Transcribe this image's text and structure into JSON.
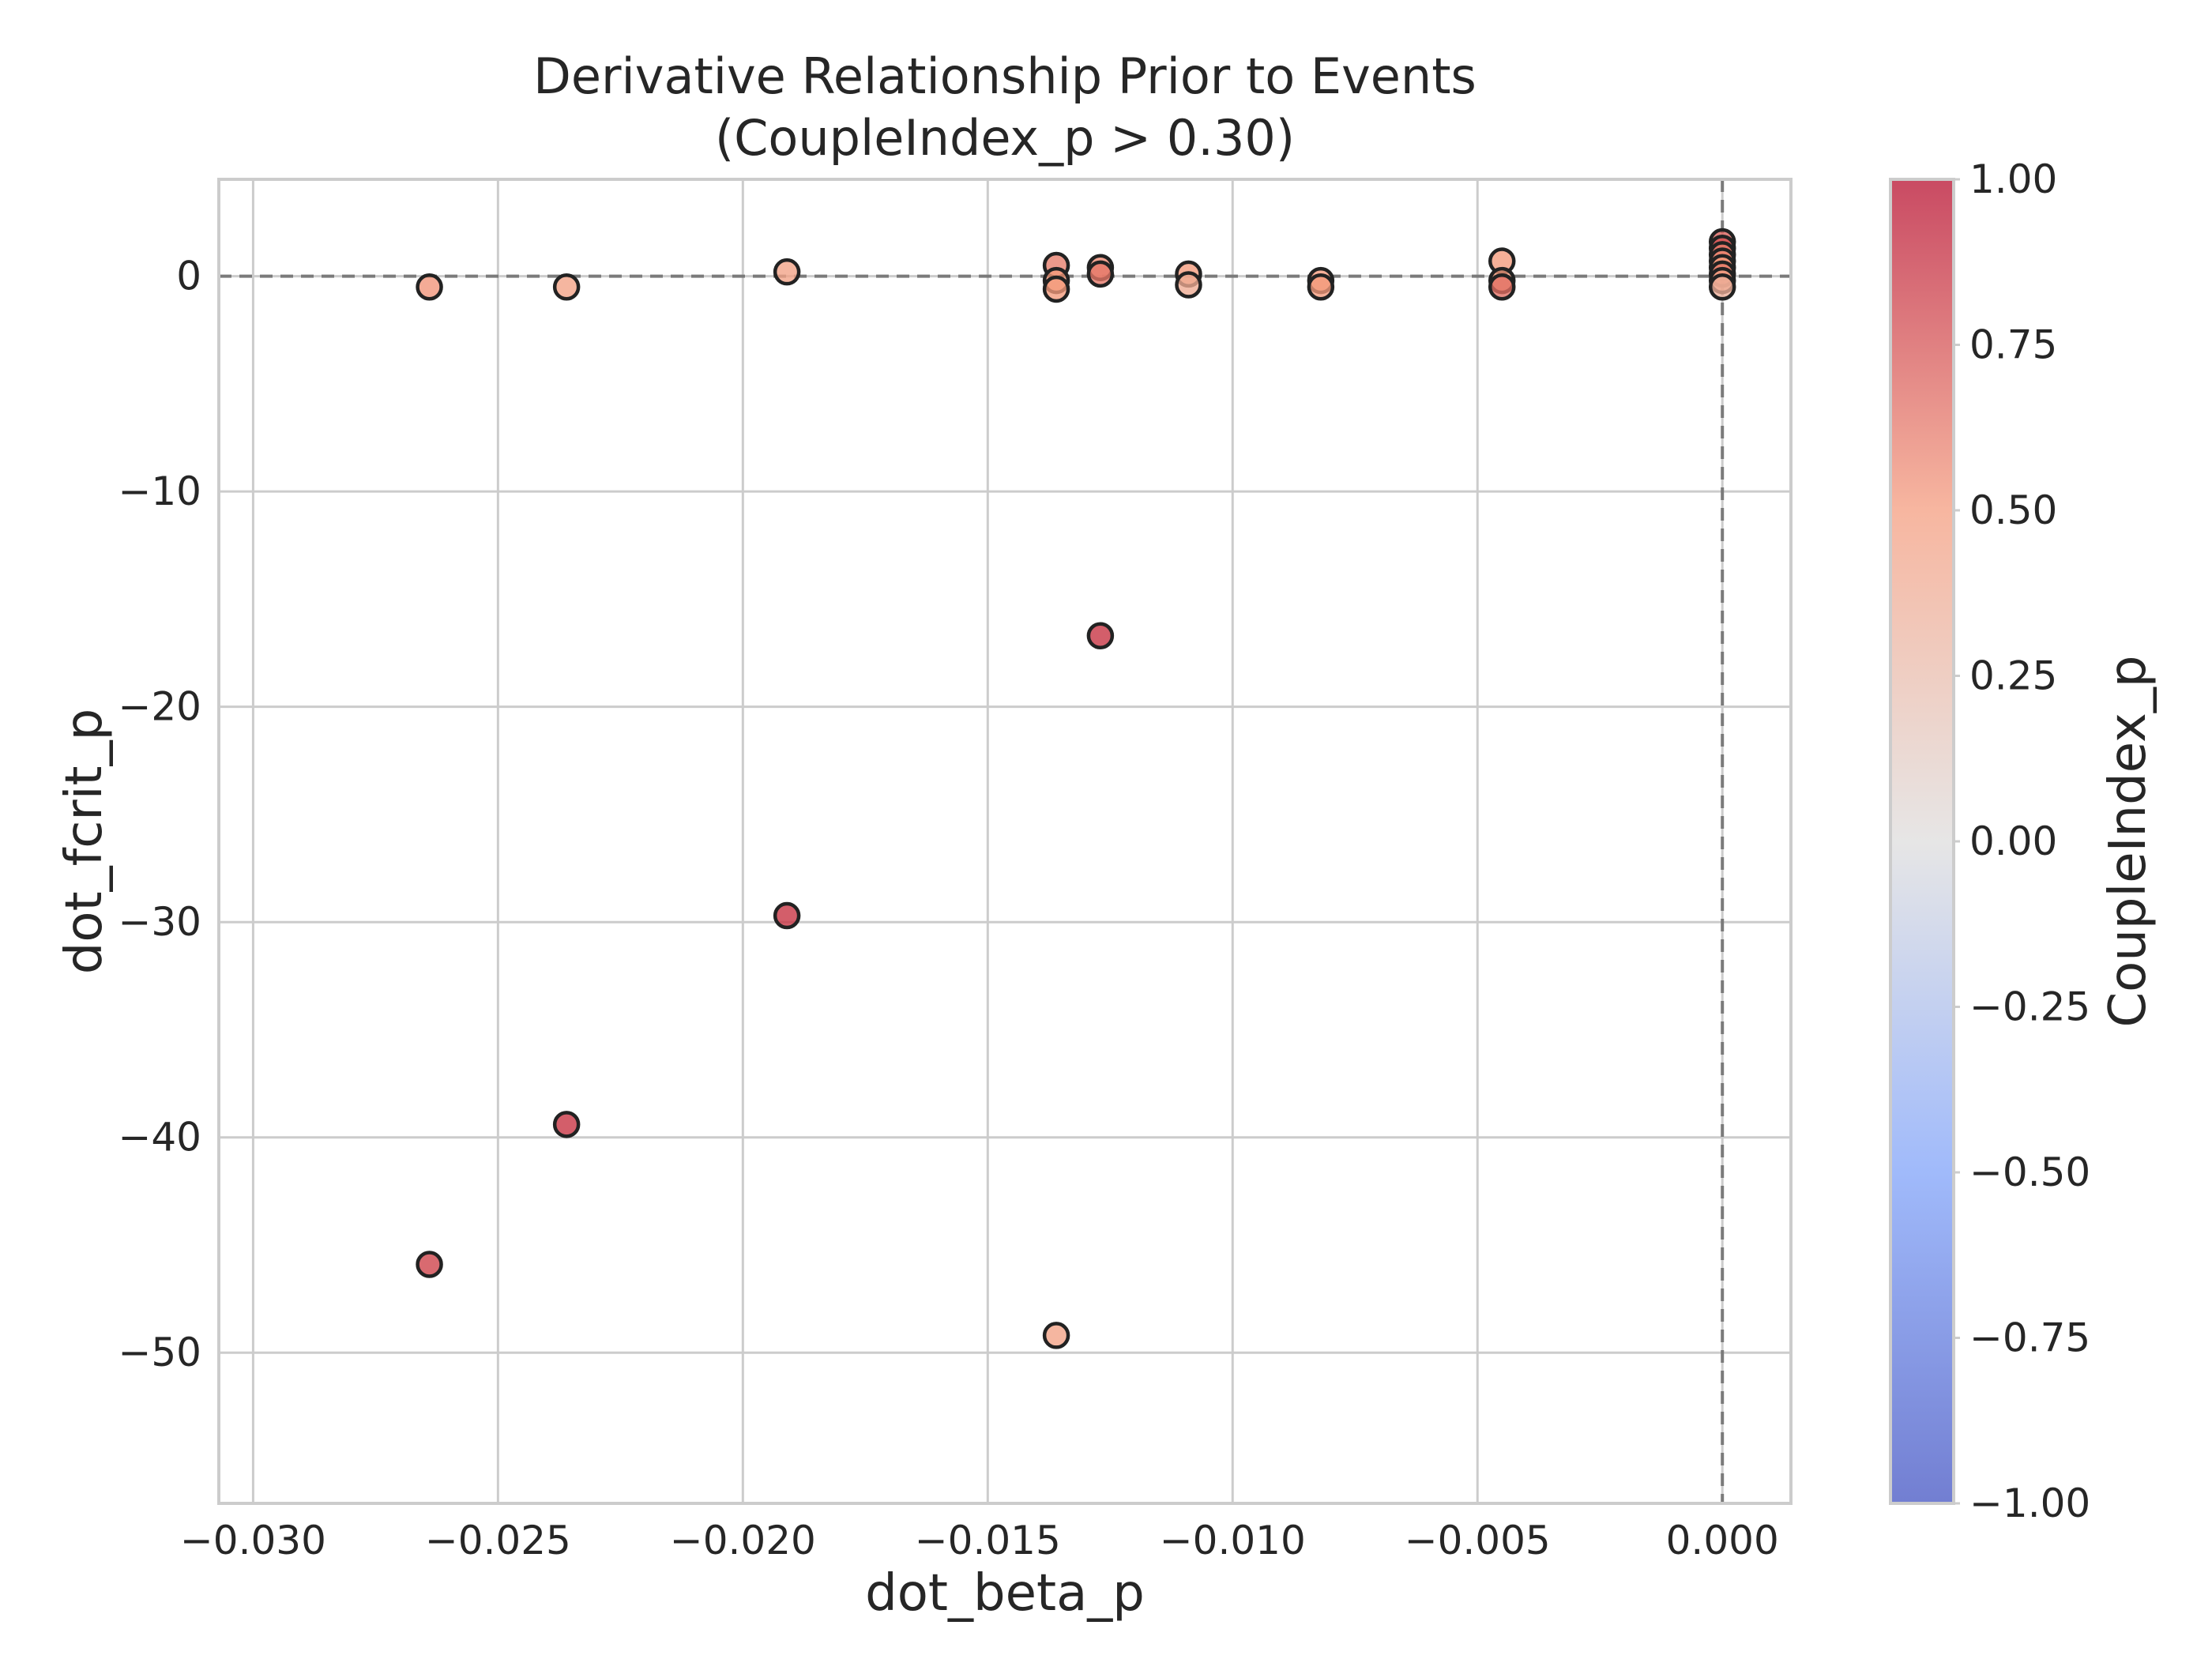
{
  "chart_data": {
    "type": "scatter",
    "title": "Derivative Relationship Prior to Events",
    "subtitle": "(CoupleIndex_p > 0.30)",
    "xlabel": "dot_beta_p",
    "ylabel": "dot_fcrit_p",
    "xlim": [
      -0.0307,
      0.0014
    ],
    "ylim": [
      -57,
      4.5
    ],
    "xticks": [
      -0.03,
      -0.025,
      -0.02,
      -0.015,
      -0.01,
      -0.005,
      0.0
    ],
    "xtick_labels": [
      "−0.030",
      "−0.025",
      "−0.020",
      "−0.015",
      "−0.010",
      "−0.005",
      "0.000"
    ],
    "yticks": [
      0,
      -10,
      -20,
      -30,
      -40,
      -50
    ],
    "ytick_labels": [
      "0",
      "−10",
      "−20",
      "−30",
      "−40",
      "−50"
    ],
    "grid": true,
    "reference_lines": {
      "y": 0,
      "x": 0,
      "style": "dashed"
    },
    "colorbar": {
      "label": "CoupleIndex_p",
      "colormap": "coolwarm",
      "range": [
        -1,
        1
      ],
      "ticks": [
        1.0,
        0.75,
        0.5,
        0.25,
        0.0,
        -0.25,
        -0.5,
        -0.75,
        -1.0
      ],
      "tick_labels": [
        "1.00",
        "0.75",
        "0.50",
        "0.25",
        "0.00",
        "−0.25",
        "−0.50",
        "−0.75",
        "−1.00"
      ],
      "stops": [
        {
          "v": -1.0,
          "color": "#3b4cc0"
        },
        {
          "v": -0.5,
          "color": "#7b9ff9"
        },
        {
          "v": 0.0,
          "color": "#dddcdc"
        },
        {
          "v": 0.5,
          "color": "#f49a7b"
        },
        {
          "v": 1.0,
          "color": "#b40426"
        }
      ]
    },
    "points": [
      {
        "x": -0.0264,
        "y": -0.5,
        "c": 0.52
      },
      {
        "x": -0.0236,
        "y": -0.5,
        "c": 0.45
      },
      {
        "x": -0.0191,
        "y": 0.2,
        "c": 0.45
      },
      {
        "x": -0.0136,
        "y": 0.5,
        "c": 0.6
      },
      {
        "x": -0.0136,
        "y": -0.2,
        "c": 0.5
      },
      {
        "x": -0.0136,
        "y": -0.6,
        "c": 0.5
      },
      {
        "x": -0.0127,
        "y": 0.4,
        "c": 0.55
      },
      {
        "x": -0.0127,
        "y": 0.1,
        "c": 0.62
      },
      {
        "x": -0.0109,
        "y": 0.1,
        "c": 0.5
      },
      {
        "x": -0.0109,
        "y": -0.4,
        "c": 0.38
      },
      {
        "x": -0.0082,
        "y": -0.2,
        "c": 0.5
      },
      {
        "x": -0.0082,
        "y": -0.5,
        "c": 0.5
      },
      {
        "x": -0.0045,
        "y": 0.7,
        "c": 0.5
      },
      {
        "x": -0.0045,
        "y": -0.2,
        "c": 0.5
      },
      {
        "x": -0.0045,
        "y": -0.5,
        "c": 0.65
      },
      {
        "x": 0.0,
        "y": 1.6,
        "c": 0.7
      },
      {
        "x": 0.0,
        "y": 1.3,
        "c": 0.75
      },
      {
        "x": 0.0,
        "y": 1.0,
        "c": 0.6
      },
      {
        "x": 0.0,
        "y": 0.7,
        "c": 0.55
      },
      {
        "x": 0.0,
        "y": 0.4,
        "c": 0.5
      },
      {
        "x": 0.0,
        "y": 0.1,
        "c": 0.6
      },
      {
        "x": 0.0,
        "y": -0.2,
        "c": 0.45
      },
      {
        "x": 0.0,
        "y": -0.5,
        "c": 0.35
      },
      {
        "x": -0.0127,
        "y": -16.7,
        "c": 0.85
      },
      {
        "x": -0.0191,
        "y": -29.7,
        "c": 0.85
      },
      {
        "x": -0.0236,
        "y": -39.4,
        "c": 0.85
      },
      {
        "x": -0.0264,
        "y": -45.9,
        "c": 0.8
      },
      {
        "x": -0.0136,
        "y": -49.2,
        "c": 0.45
      }
    ]
  }
}
